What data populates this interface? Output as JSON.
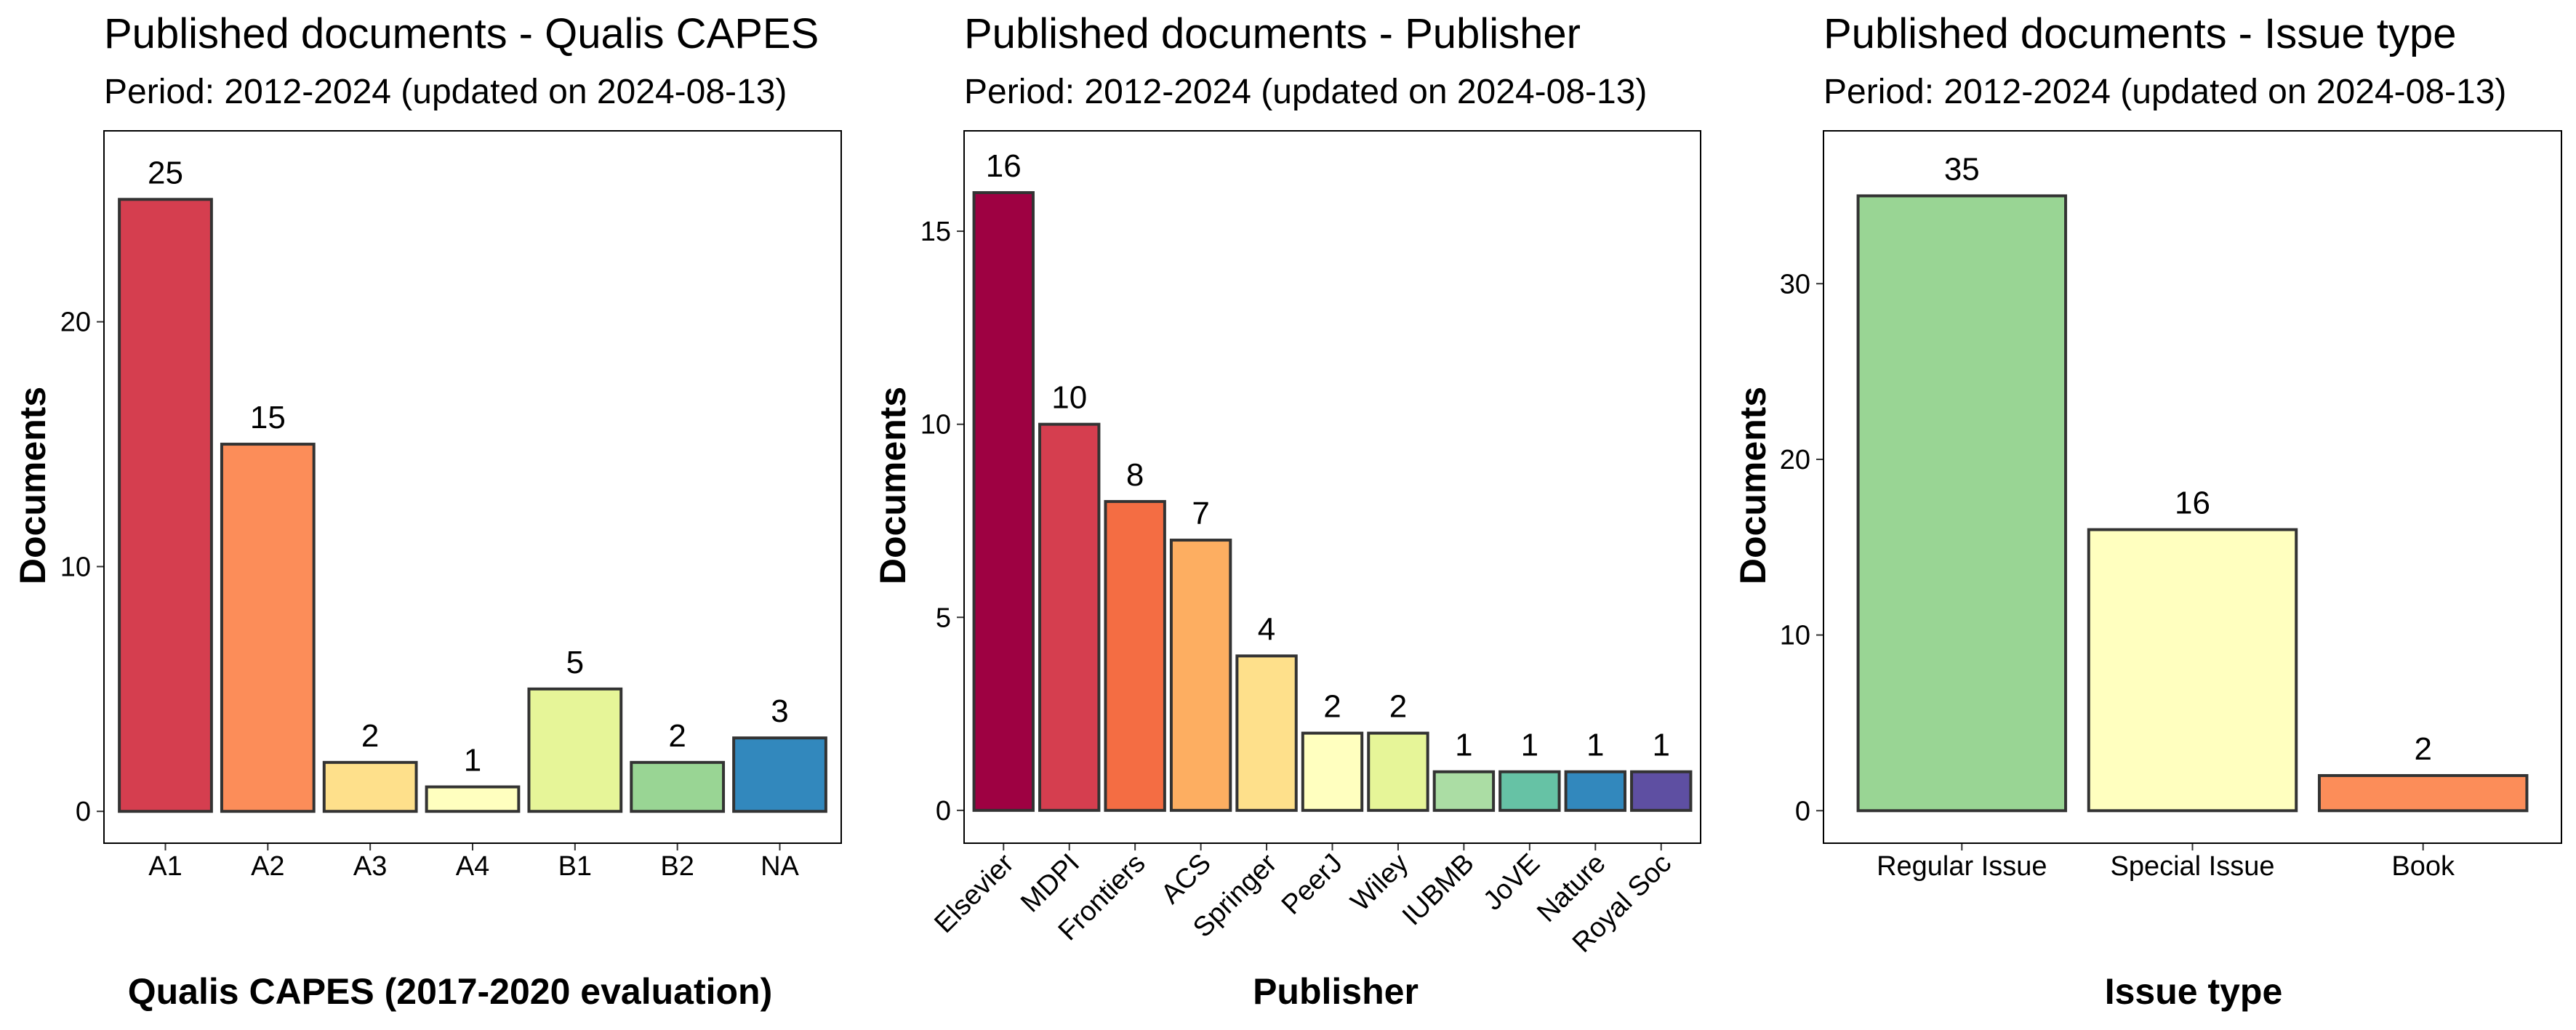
{
  "chart_data": [
    {
      "type": "bar",
      "title": "Published documents - Qualis CAPES",
      "subtitle": "Period: 2012-2024 (updated on 2024-08-13)",
      "xlabel": "Qualis CAPES (2017-2020 evaluation)",
      "ylabel": "Documents",
      "categories": [
        "A1",
        "A2",
        "A3",
        "A4",
        "B1",
        "B2",
        "NA"
      ],
      "values": [
        25,
        15,
        2,
        1,
        5,
        2,
        3
      ],
      "colors": [
        "#D53E4F",
        "#FC8D59",
        "#FEE08B",
        "#FFFFBF",
        "#E6F598",
        "#99D594",
        "#3288BD"
      ],
      "ylim": [
        -1.3,
        27.8
      ],
      "yticks": [
        0,
        10,
        20
      ],
      "xtick_rotation": 0,
      "grid": false,
      "legend": "none"
    },
    {
      "type": "bar",
      "title": "Published documents - Publisher",
      "subtitle": "Period: 2012-2024 (updated on 2024-08-13)",
      "xlabel": "Publisher",
      "ylabel": "Documents",
      "categories": [
        "Elsevier",
        "MDPI",
        "Frontiers",
        "ACS",
        "Springer",
        "PeerJ",
        "Wiley",
        "IUBMB",
        "JoVE",
        "Nature",
        "Royal Soc"
      ],
      "values": [
        16,
        10,
        8,
        7,
        4,
        2,
        2,
        1,
        1,
        1,
        1
      ],
      "colors": [
        "#9E0142",
        "#D53E4F",
        "#F46D43",
        "#FDAE61",
        "#FEE08B",
        "#FFFFBF",
        "#E6F598",
        "#ABDDA4",
        "#66C2A5",
        "#3288BD",
        "#5E4FA2"
      ],
      "ylim": [
        -0.85,
        17.6
      ],
      "yticks": [
        0,
        5,
        10,
        15
      ],
      "xtick_rotation": 45,
      "grid": false,
      "legend": "none"
    },
    {
      "type": "bar",
      "title": "Published documents - Issue type",
      "subtitle": "Period: 2012-2024 (updated on 2024-08-13)",
      "xlabel": "Issue type",
      "ylabel": "Documents",
      "categories": [
        "Regular Issue",
        "Special Issue",
        "Book"
      ],
      "values": [
        35,
        16,
        2
      ],
      "colors": [
        "#99D594",
        "#FFFFBF",
        "#FC8D59"
      ],
      "ylim": [
        -1.85,
        38.7
      ],
      "yticks": [
        0,
        10,
        20,
        30
      ],
      "xtick_rotation": 0,
      "grid": false,
      "legend": "none"
    }
  ]
}
